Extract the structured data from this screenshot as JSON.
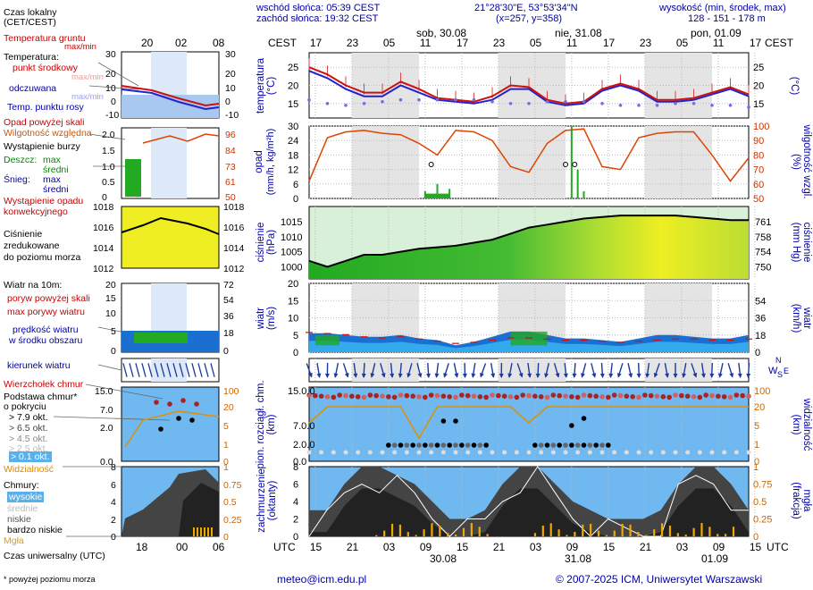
{
  "header": {
    "sunrise": "wschód słońca: 05:39 CEST",
    "sunset": "zachód słońca: 19:32 CEST",
    "coords": "21°28'30\"E, 53°53'34\"N",
    "grid": "(x=257,  y=358)",
    "elev_label": "wysokość (min, środek, max)",
    "elev_values": "128 - 151 - 178 m"
  },
  "footer": {
    "note": "* powyżej poziomu morza",
    "email": "meteo@icm.edu.pl",
    "copyright": "© 2007-2025 ICM, Uniwersytet Warszawski"
  },
  "legend": {
    "local_time": "Czas lokalny",
    "local_time2": "(CET/CEST)",
    "t_ground": "Temperatura gruntu",
    "t_ground2": "max/min",
    "temperature": "Temperatura:",
    "t_mid": "punkt środkowy",
    "t_maxmin": "max/min",
    "t_feel": "odczuwana",
    "t_feel_maxmin": "max/min",
    "dew": "Temp. punktu rosy",
    "precip_thr": "Opad powyżej skali",
    "humidity": "Wilgotność względna",
    "storm": "Wystąpienie burzy",
    "rain": "Deszcz:",
    "rain_max": "max",
    "rain_mid": "średni",
    "snow": "Śnieg:",
    "snow_max": "max",
    "snow_mid": "średni",
    "conv": "Wystąpienie opadu",
    "conv2": "konwekcyjnego",
    "pressure": "Ciśnienie",
    "pressure2": "zredukowane",
    "pressure3": "do poziomu morza",
    "wind": "Wiatr na 10m:",
    "gust_thr": "poryw powyżej skali",
    "gust_max": "max porywy wiatru",
    "wind_speed": "prędkość wiatru",
    "wind_speed2": "w środku obszaru",
    "wind_dir": "kierunek wiatru",
    "tops": "Wierzchołek chmur",
    "base": "Podstawa chmur*",
    "base2": "o pokryciu",
    "okt1": "> 7.9 okt.",
    "okt2": "> 6.5 okt.",
    "okt3": "> 4.5 okt.",
    "okt4": "> 2.5 okt.",
    "okt5": "> 0.1 okt.",
    "visibility": "Widzialność",
    "clouds": "Chmury:",
    "c_high": "wysokie",
    "c_mid": "średnie",
    "c_low": "niskie",
    "c_vlow": "bardzo niskie",
    "fog": "Mgła",
    "utc_label": "Czas uniwersalny (UTC)",
    "mini_top_ticks": [
      "20",
      "02",
      "08"
    ],
    "mini_bot_ticks": [
      "18",
      "00",
      "06"
    ]
  },
  "axes": {
    "cest": "CEST",
    "utc": "UTC",
    "local_ticks": [
      "17",
      "23",
      "05",
      "11",
      "17",
      "23",
      "05",
      "11",
      "17",
      "23",
      "05",
      "11",
      "17"
    ],
    "utc_ticks": [
      "15",
      "21",
      "03",
      "09",
      "15",
      "21",
      "03",
      "09",
      "15",
      "21",
      "03",
      "09",
      "15"
    ],
    "day_labels_top": [
      "sob, 30.08",
      "nie, 31.08",
      "pon, 01.09"
    ],
    "day_labels_bot": [
      "30.08",
      "31.08",
      "01.09"
    ],
    "temp_title": "temperatura",
    "temp_unit": "(°C)",
    "precip_title": "opad",
    "precip_unit": "(mm/h, kg/m²h)",
    "hum_title": "wilgotność wzgl.",
    "hum_unit": "(%)",
    "press_title": "ciśnienie",
    "press_unit": "(hPa)",
    "press_unit2": "(mm Hg)",
    "wind_title": "wiatr",
    "wind_unit": "(m/s)",
    "wind_unit2": "(km/h)",
    "cloudbase_title": "pion. rozciągł. chm.",
    "cloudbase_unit": "(km)",
    "vis_title": "widzialność",
    "vis_unit": "(km)",
    "cover_title": "zachmurzenie",
    "cover_unit": "(oktanty)",
    "fog_title": "mgła",
    "fog_unit": "(frakcja)",
    "compass": {
      "n": "N",
      "w": "W",
      "s": "S",
      "e": "E"
    }
  },
  "chart_data": {
    "type": "line",
    "hours_from_start": [
      0,
      3,
      6,
      9,
      12,
      15,
      18,
      21,
      24,
      27,
      30,
      33,
      36,
      39,
      42,
      45,
      48,
      51,
      54,
      57,
      60,
      63,
      66,
      69,
      72
    ],
    "temperature": {
      "ticks": [
        15,
        20,
        25
      ],
      "mid": [
        25,
        23,
        20,
        18,
        18,
        21,
        19,
        16.5,
        16,
        15.5,
        17,
        20,
        19.5,
        16,
        15,
        15.5,
        19,
        20.5,
        19,
        16,
        16,
        16.5,
        18,
        19.5,
        17.5
      ]
    },
    "feels_like": [
      24,
      22,
      19,
      17,
      17,
      20,
      18,
      16,
      15.5,
      15,
      16,
      19,
      19,
      15.5,
      14.5,
      15,
      18.5,
      20,
      18.5,
      15.5,
      15.5,
      16,
      17.5,
      19,
      17
    ],
    "dew_point": [
      16,
      15,
      14.5,
      15,
      15.5,
      16,
      16,
      16,
      16,
      16,
      15.5,
      15,
      15,
      15.5,
      15.5,
      15.5,
      15,
      14.5,
      14.5,
      14.5,
      15,
      15,
      14.5,
      14.5,
      14
    ],
    "precip": {
      "ticks_left": [
        0,
        6,
        12,
        18,
        24,
        30
      ],
      "ticks_right": [
        50,
        60,
        70,
        80,
        90,
        100
      ],
      "bars": [
        [
          19,
          3
        ],
        [
          21,
          6
        ],
        [
          23,
          4
        ],
        [
          43,
          30
        ],
        [
          44,
          12
        ],
        [
          45,
          3
        ]
      ]
    },
    "humidity": [
      62,
      92,
      96,
      97,
      95,
      94,
      88,
      80,
      97,
      96,
      90,
      72,
      68,
      88,
      97,
      98,
      72,
      70,
      92,
      95,
      96,
      96,
      80,
      62,
      78
    ],
    "pressure": {
      "ticks_left": [
        1000,
        1005,
        1010,
        1015
      ],
      "ticks_right": [
        750,
        754,
        758,
        761
      ],
      "values": [
        1002,
        1000,
        1002,
        1004,
        1004,
        1005,
        1006,
        1006.5,
        1007,
        1008,
        1009,
        1011,
        1013,
        1014,
        1015,
        1016,
        1016.5,
        1017,
        1017,
        1017,
        1017,
        1016.5,
        1016,
        1015.5,
        1015.5
      ]
    },
    "wind": {
      "ticks_left": [
        0,
        5,
        10,
        15,
        20
      ],
      "ticks_right": [
        0,
        18,
        36,
        54
      ],
      "speed": [
        5.5,
        5.5,
        5,
        4.5,
        4.5,
        5,
        4,
        3.5,
        2,
        3,
        4.5,
        6,
        6,
        5,
        4,
        4,
        3.5,
        3,
        4,
        5,
        5,
        4.5,
        4,
        4,
        5
      ],
      "gust": [
        18,
        17,
        16,
        14,
        13,
        14,
        12,
        10,
        8,
        9,
        11,
        13,
        13,
        12,
        11,
        11,
        10,
        9,
        10,
        11,
        12,
        12,
        11,
        11,
        12
      ]
    },
    "cloud_vertical": {
      "ticks_left": [
        0,
        2,
        7,
        15
      ],
      "ticks_right": [
        0,
        1,
        5,
        20,
        100
      ],
      "visibility_km": [
        6,
        20,
        20,
        20,
        20,
        20,
        4,
        20,
        20,
        20,
        20,
        20,
        5,
        20,
        20,
        20,
        20,
        20,
        20,
        20,
        20,
        20,
        20,
        20,
        20
      ]
    },
    "cloud_cover": {
      "ticks_left": [
        0,
        2,
        4,
        6,
        8
      ],
      "ticks_right": [
        0,
        0.25,
        0.5,
        0.75,
        1
      ]
    }
  }
}
